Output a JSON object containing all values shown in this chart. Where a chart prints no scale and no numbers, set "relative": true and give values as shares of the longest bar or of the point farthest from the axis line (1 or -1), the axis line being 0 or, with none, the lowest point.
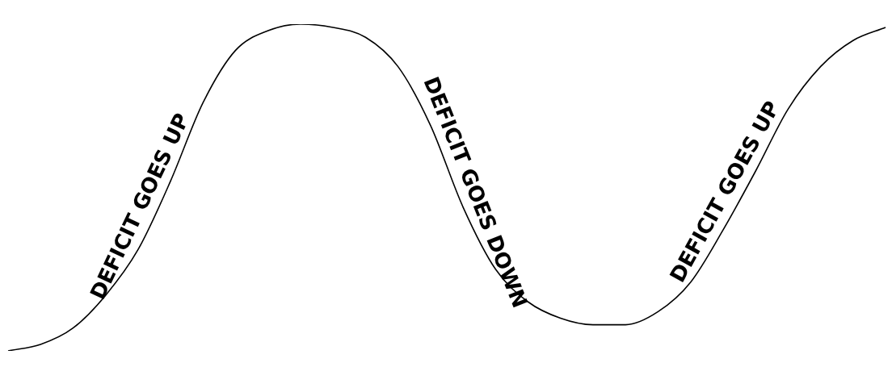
{
  "chart_data": {
    "type": "line",
    "relative": true,
    "categories": [
      null,
      null,
      null,
      null,
      null,
      null,
      null,
      null,
      null,
      null,
      null,
      null,
      null,
      null,
      null,
      null,
      null,
      null,
      null,
      null,
      null,
      null,
      null,
      null,
      null,
      null,
      null,
      null
    ],
    "series": [
      {
        "color": "#000000",
        "values": [
          0,
          0.02,
          0.07,
          0.17,
          0.31,
          0.52,
          0.76,
          0.92,
          0.98,
          1,
          0.99,
          0.96,
          0.87,
          0.69,
          0.44,
          0.25,
          0.15,
          0.1,
          0.08,
          0.08,
          0.12,
          0.21,
          0.37,
          0.55,
          0.74,
          0.87,
          0.95,
          0.99
        ]
      }
    ],
    "annotations": [
      "DEFICIT GOES UP",
      "DEFICIT GOES DOWN",
      "DEFICIT GOES UP"
    ],
    "legend": false,
    "marker": "none",
    "line_style": "solid"
  }
}
